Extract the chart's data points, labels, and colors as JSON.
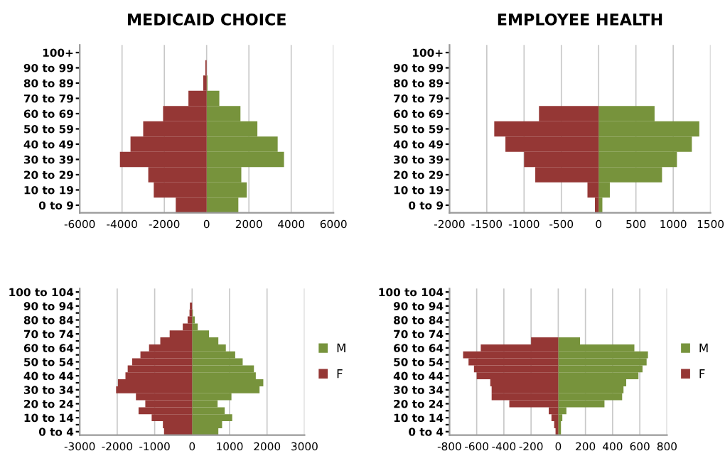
{
  "chart_data": [
    {
      "type": "bar",
      "orientation": "horizontal",
      "title": "MEDICAID CHOICE",
      "categories": [
        "100+",
        "90 to 99",
        "80 to 89",
        "70 to 79",
        "60 to 69",
        "50 to 59",
        "40 to 49",
        "30 to 39",
        "20 to 29",
        "10 to 19",
        "0 to 9"
      ],
      "series": [
        {
          "color": "#77933c",
          "values": [
            0,
            null,
            40,
            600,
            1600,
            2400,
            3360,
            3660,
            1640,
            1900,
            1500
          ]
        },
        {
          "color": "#953735",
          "values": [
            0,
            -60,
            -160,
            -860,
            -2060,
            -3000,
            -3600,
            -4100,
            -2760,
            -2500,
            -1460
          ]
        }
      ],
      "xlim": [
        -6000,
        6000
      ],
      "xticks": [
        -6000,
        -4000,
        -2000,
        0,
        2000,
        4000,
        6000
      ],
      "grid": "x",
      "stacked": true
    },
    {
      "type": "bar",
      "orientation": "horizontal",
      "title": "EMPLOYEE HEALTH",
      "categories": [
        "100+",
        "90 to 99",
        "80 to 89",
        "70 to 79",
        "60 to 69",
        "50 to 59",
        "40 to 49",
        "30 to 39",
        "20 to 29",
        "10 to 19",
        "0 to 9"
      ],
      "series": [
        {
          "color": "#77933c",
          "values": [
            0,
            0,
            0,
            0,
            750,
            1350,
            1250,
            1050,
            850,
            150,
            50
          ]
        },
        {
          "color": "#953735",
          "values": [
            0,
            0,
            0,
            0,
            -800,
            -1400,
            -1250,
            -1000,
            -850,
            -150,
            -50
          ]
        }
      ],
      "xlim": [
        -2000,
        1500
      ],
      "xticks": [
        -2000,
        -1500,
        -1000,
        -500,
        0,
        500,
        1000,
        1500
      ],
      "grid": "x",
      "stacked": true
    },
    {
      "type": "bar",
      "orientation": "horizontal",
      "categories": [
        "100 to 104",
        null,
        "90 to 94",
        null,
        "80 to 84",
        null,
        "70 to 74",
        null,
        "60 to 64",
        null,
        "50 to 54",
        null,
        "40 to 44",
        null,
        "30 to 34",
        null,
        "20 to 24",
        null,
        "10 to 14",
        null,
        "0 to 4"
      ],
      "series": [
        {
          "name": "M",
          "color": "#77933c",
          "values": [
            0,
            null,
            null,
            20,
            70,
            150,
            450,
            700,
            900,
            1150,
            1350,
            1650,
            1700,
            1900,
            1800,
            1050,
            680,
            870,
            1070,
            800,
            700
          ]
        },
        {
          "name": "F",
          "color": "#953735",
          "values": [
            0,
            null,
            -60,
            -70,
            -120,
            -250,
            -600,
            -850,
            -1150,
            -1380,
            -1600,
            -1720,
            -1780,
            -1980,
            -2030,
            -1500,
            -1250,
            -1430,
            -1080,
            -780,
            -750
          ]
        }
      ],
      "xlim": [
        -3000,
        3000
      ],
      "xticks": [
        -3000,
        -2000,
        -1000,
        0,
        1000,
        2000,
        3000
      ],
      "grid": "x",
      "legend": "right",
      "stacked": true
    },
    {
      "type": "bar",
      "orientation": "horizontal",
      "categories": [
        "100 to 104",
        null,
        "90 to 94",
        null,
        "80 to 84",
        null,
        "70 to 74",
        null,
        "60 to 64",
        null,
        "50 to 54",
        null,
        "40 to 44",
        null,
        "30 to 34",
        null,
        "20 to 24",
        null,
        "10 to 14",
        null,
        "0 to 4"
      ],
      "series": [
        {
          "name": "M",
          "color": "#77933c",
          "values": [
            0,
            0,
            0,
            0,
            0,
            0,
            0,
            160,
            560,
            660,
            650,
            620,
            590,
            500,
            480,
            470,
            340,
            60,
            30,
            20,
            20
          ]
        },
        {
          "name": "F",
          "color": "#953735",
          "values": [
            0,
            0,
            0,
            0,
            0,
            0,
            0,
            -200,
            -570,
            -700,
            -660,
            -620,
            -600,
            -500,
            -490,
            -490,
            -360,
            -70,
            -50,
            -30,
            -20
          ]
        }
      ],
      "xlim": [
        -800,
        800
      ],
      "xticks": [
        -800,
        -600,
        -400,
        -200,
        0,
        200,
        400,
        600,
        800
      ],
      "grid": "x",
      "legend": "right",
      "stacked": true
    }
  ]
}
